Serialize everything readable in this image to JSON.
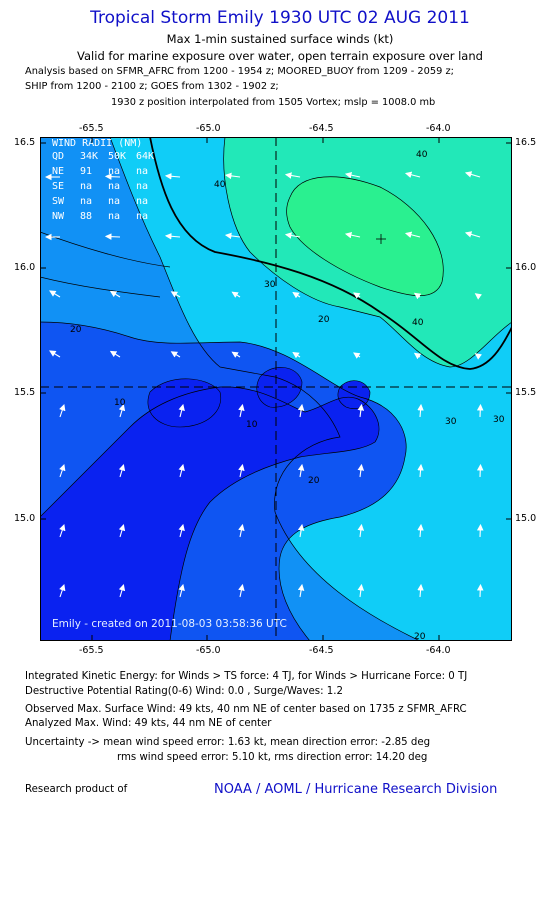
{
  "header": {
    "title": "Tropical Storm Emily 1930 UTC 02 AUG 2011",
    "subtitle": "Max 1-min sustained surface winds (kt)",
    "validity": "Valid for marine exposure over water, open terrain exposure over land",
    "analysis_line1": "Analysis based on SFMR_AFRC from 1200 - 1954 z; MOORED_BUOY from 1209 - 2059 z;",
    "analysis_line2": "SHIP from 1200 - 2100 z; GOES from 1302 - 1902 z;",
    "position_line": "1930 z position interpolated from 1505 Vortex; mslp = 1008.0 mb"
  },
  "map": {
    "lon_range": [
      -65.75,
      -63.72
    ],
    "lat_range": [
      14.55,
      16.55
    ],
    "lon_ticks": [
      "-65.5",
      "-65.0",
      "-64.5",
      "-64.0"
    ],
    "lat_ticks": [
      "16.5",
      "16.0",
      "15.5",
      "15.0"
    ],
    "center": {
      "lon": -64.7,
      "lat": 15.52
    },
    "max_wind_marker": {
      "lon": -64.25,
      "lat": 16.11
    },
    "contour_labels": [
      "40",
      "40",
      "40",
      "30",
      "30",
      "30",
      "20",
      "20",
      "20",
      "20",
      "10",
      "10"
    ],
    "wind_radii_table": {
      "title": "WIND RADII (NM)",
      "header": [
        "QD",
        "34K",
        "50K",
        "64K"
      ],
      "rows": [
        [
          "NE",
          "91",
          "na",
          "na"
        ],
        [
          "SE",
          "na",
          "na",
          "na"
        ],
        [
          "SW",
          "na",
          "na",
          "na"
        ],
        [
          "NW",
          "88",
          "na",
          "na"
        ]
      ]
    },
    "footer_label": "Emily - created on 2011-08-03 03:58:36 UTC",
    "colors": {
      "fill_0_10": "#0a22f0",
      "fill_10_20": "#0f55f2",
      "fill_20_30": "#1191f5",
      "fill_30_40": "#10cdf7",
      "fill_40_plus": "#22e8b8",
      "fill_max": "#2af090"
    }
  },
  "stats": {
    "ike": "Integrated Kinetic Energy:  for Winds > TS force: 4 TJ,  for Winds > Hurricane Force: 0 TJ",
    "dpr": "Destructive Potential Rating(0-6)   Wind: 0.0 , Surge/Waves: 1.2",
    "observed": "Observed Max. Surface Wind: 49 kts, 40 nm NE of center based on 1735 z SFMR_AFRC",
    "analyzed": "Analyzed Max. Wind: 49 kts, 44 nm NE of center",
    "uncertainty1": "Uncertainty -> mean wind speed error: 1.63 kt,   mean direction error:  -2.85 deg",
    "uncertainty2": "rms wind speed error: 5.10 kt,   rms direction error: 14.20 deg"
  },
  "footer": {
    "research": "Research product of",
    "org": "NOAA / AOML / Hurricane Research Division"
  }
}
